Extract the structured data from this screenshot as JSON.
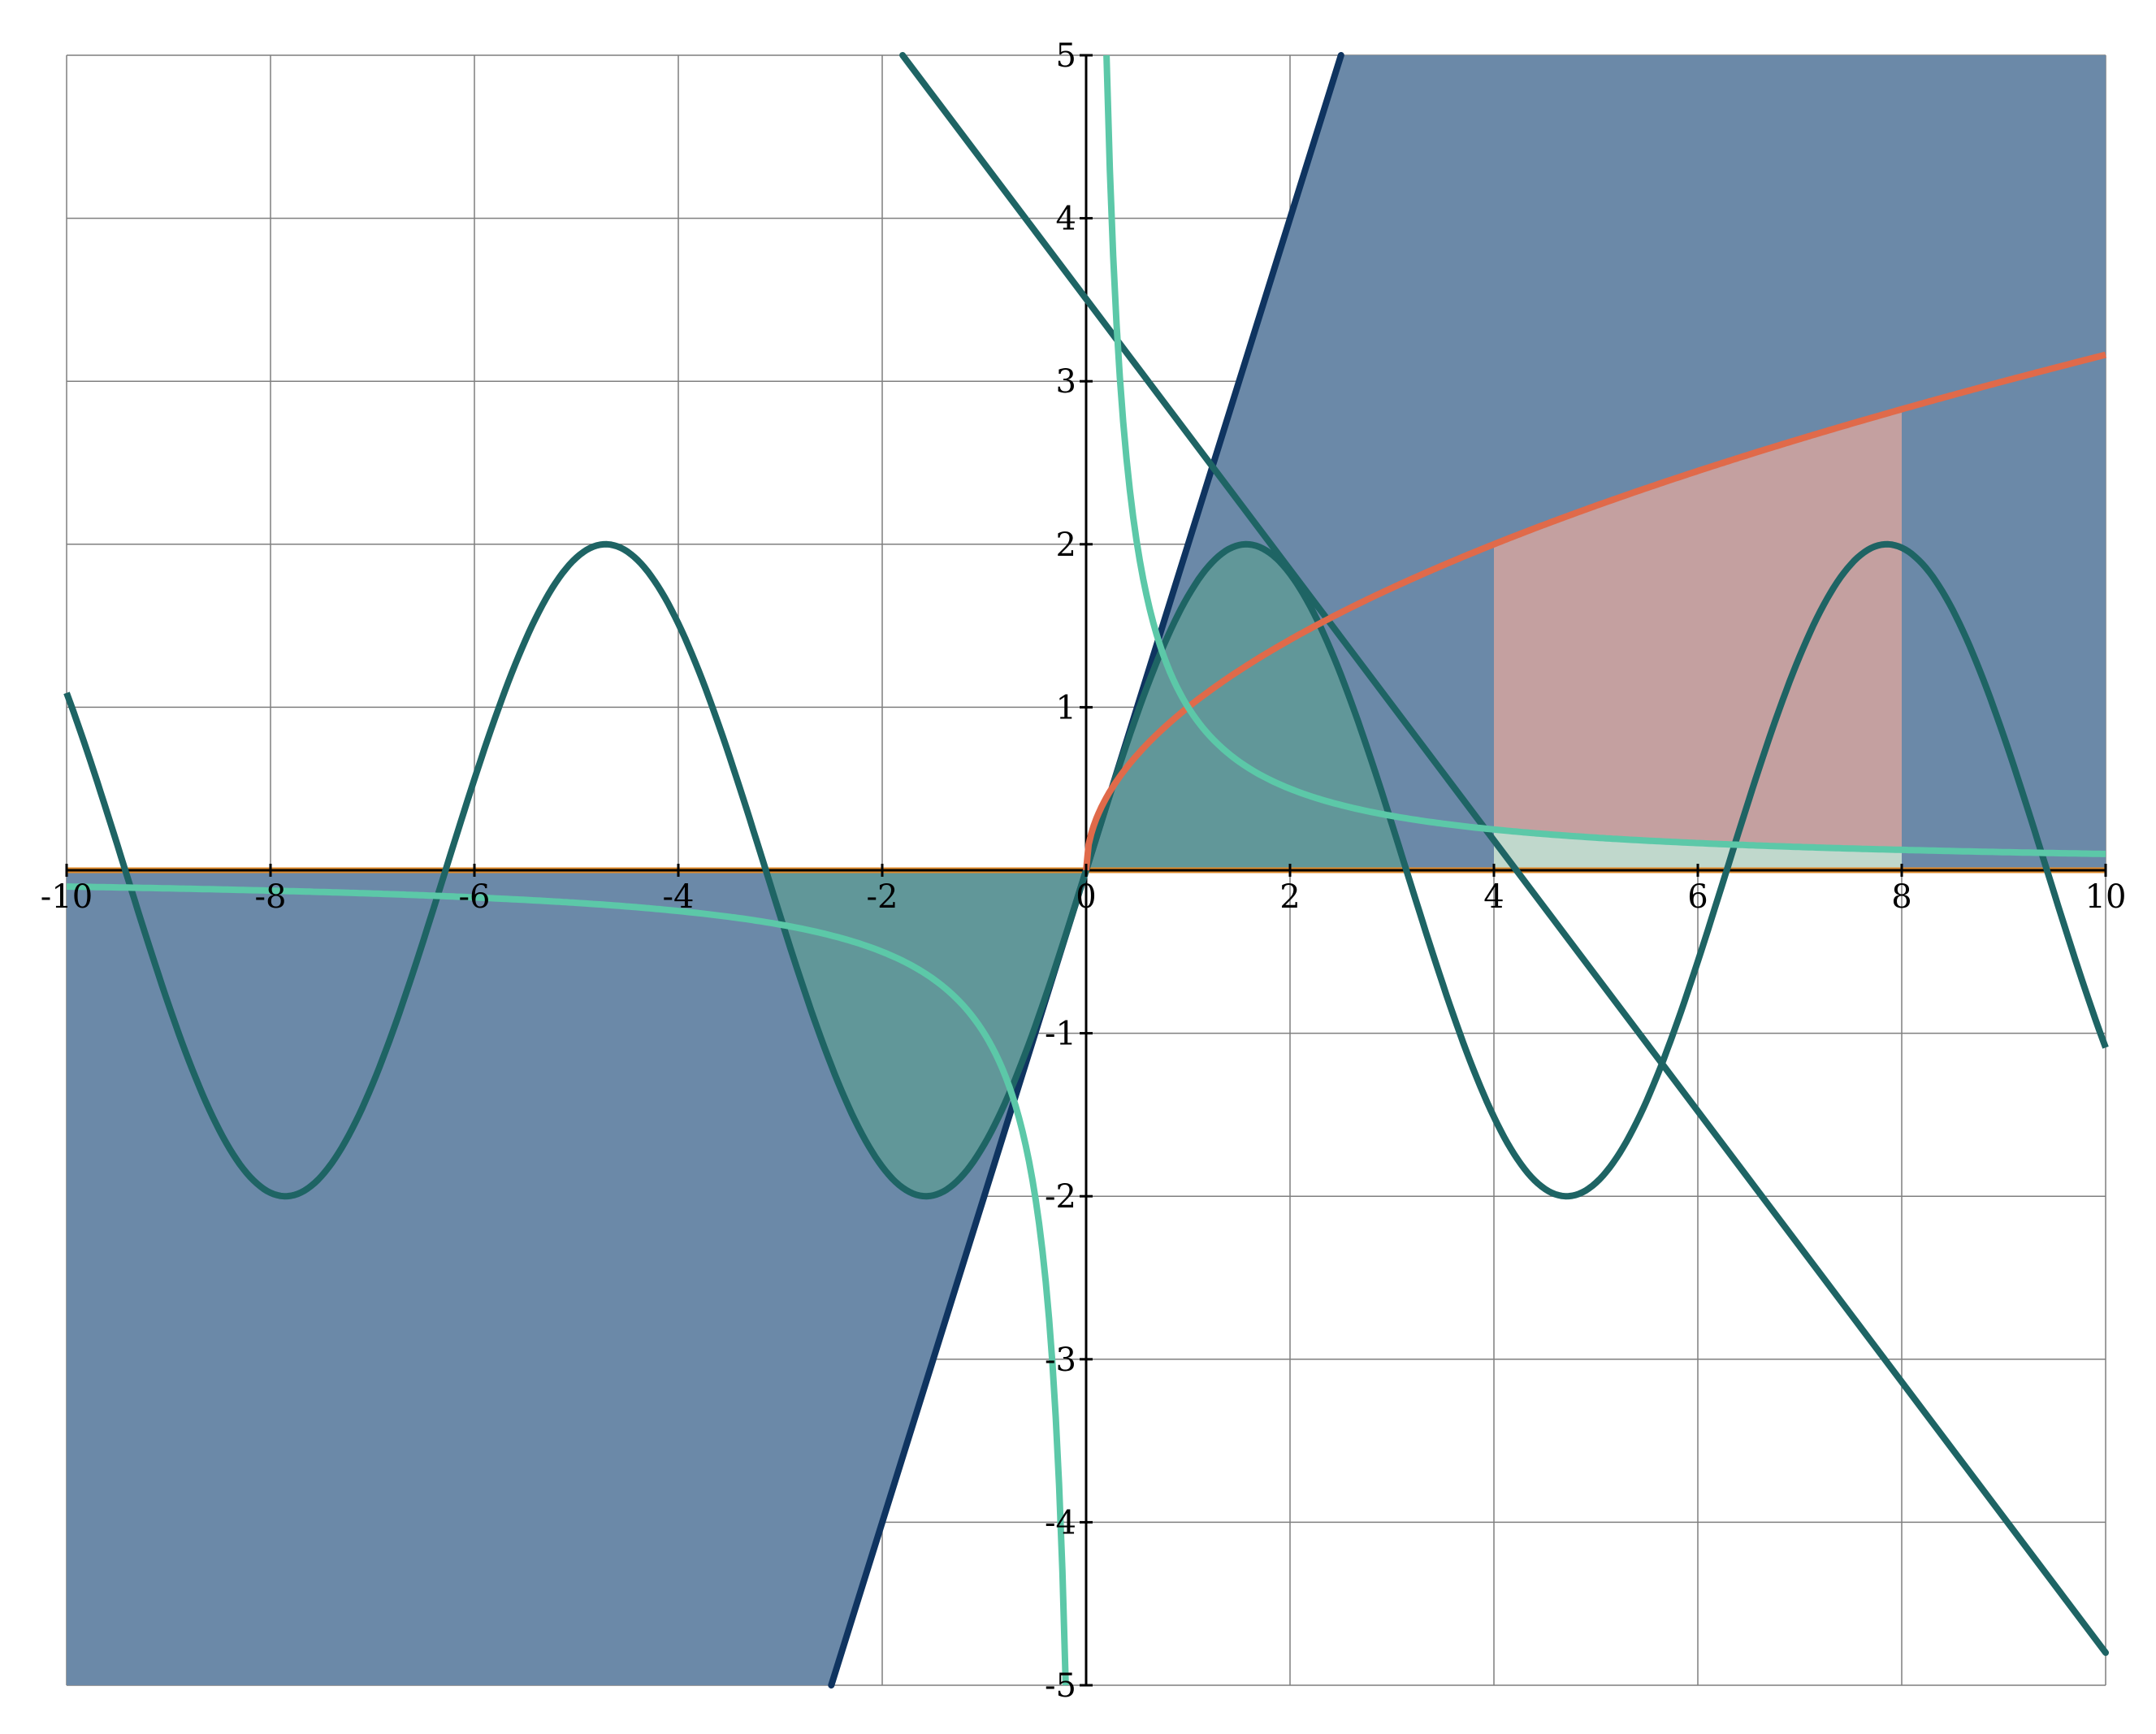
{
  "chart_data": {
    "type": "line",
    "title": "",
    "xlabel": "",
    "ylabel": "",
    "xlim": [
      -10,
      10
    ],
    "ylim": [
      -5,
      5
    ],
    "grid": true,
    "x_ticks": [
      -10,
      -8,
      -6,
      -4,
      -2,
      0,
      2,
      4,
      6,
      8,
      10
    ],
    "x_tick_labels": [
      "-10",
      "-8",
      "-6",
      "-4",
      "-2",
      "0",
      "2",
      "4",
      "6",
      "8",
      "10"
    ],
    "y_ticks": [
      -5,
      -4,
      -3,
      -2,
      -1,
      0,
      1,
      2,
      3,
      4,
      5
    ],
    "y_tick_labels": [
      "-5",
      "-4",
      "-3",
      "-2",
      "-1",
      "0",
      "1",
      "2",
      "3",
      "4",
      "5"
    ],
    "colors": {
      "line_2x": "#0f3460",
      "fill_2x": "#6b89a8",
      "sine": "#1e6464",
      "decline": "#1e6464",
      "sqrt": "#e06a4a",
      "reciprocal": "#5cc8a8",
      "zero_line": "#e08a2a",
      "fill_sine": "#5f9a96",
      "fill_sqrt": "#c4a0a0",
      "fill_recip": "#c0d8cc"
    },
    "series": [
      {
        "kind": "line",
        "x": [
          -2.5,
          2.5
        ],
        "y": [
          -5,
          5
        ]
      },
      {
        "kind": "sine",
        "amplitude": 2,
        "x": [
          -10,
          -7.854,
          -4.712,
          -1.571,
          0,
          1.571,
          4.712,
          7.854,
          10
        ],
        "y": [
          1.09,
          -2,
          2,
          -2,
          0,
          2,
          -2,
          2,
          -1.09
        ]
      },
      {
        "kind": "line",
        "x": [
          -1.8,
          10
        ],
        "y": [
          5,
          -4.8
        ]
      },
      {
        "kind": "sqrt",
        "x": [
          0,
          1,
          4,
          8,
          10
        ],
        "y": [
          0,
          1,
          2,
          2.83,
          3.16
        ]
      },
      {
        "kind": "reciprocal",
        "x": [
          -10,
          -2,
          -1,
          -0.5,
          -0.2,
          0.2,
          0.5,
          1,
          2,
          10
        ],
        "y": [
          -0.1,
          -0.5,
          -1,
          -2,
          -5,
          5,
          2,
          1,
          0.5,
          0.1
        ]
      },
      {
        "kind": "line",
        "x": [
          -10,
          10
        ],
        "y": [
          0,
          0
        ]
      }
    ],
    "shaded_regions": [
      {
        "between": "2x and axis edge",
        "x_range": [
          -10,
          10
        ]
      },
      {
        "between": "sine and y=0",
        "x_range": [
          -3.14,
          3.14
        ]
      },
      {
        "between": "sqrt and y=0",
        "x_range": [
          4,
          8
        ]
      },
      {
        "between": "reciprocal and y=0",
        "x_range": [
          4,
          8
        ]
      }
    ]
  }
}
